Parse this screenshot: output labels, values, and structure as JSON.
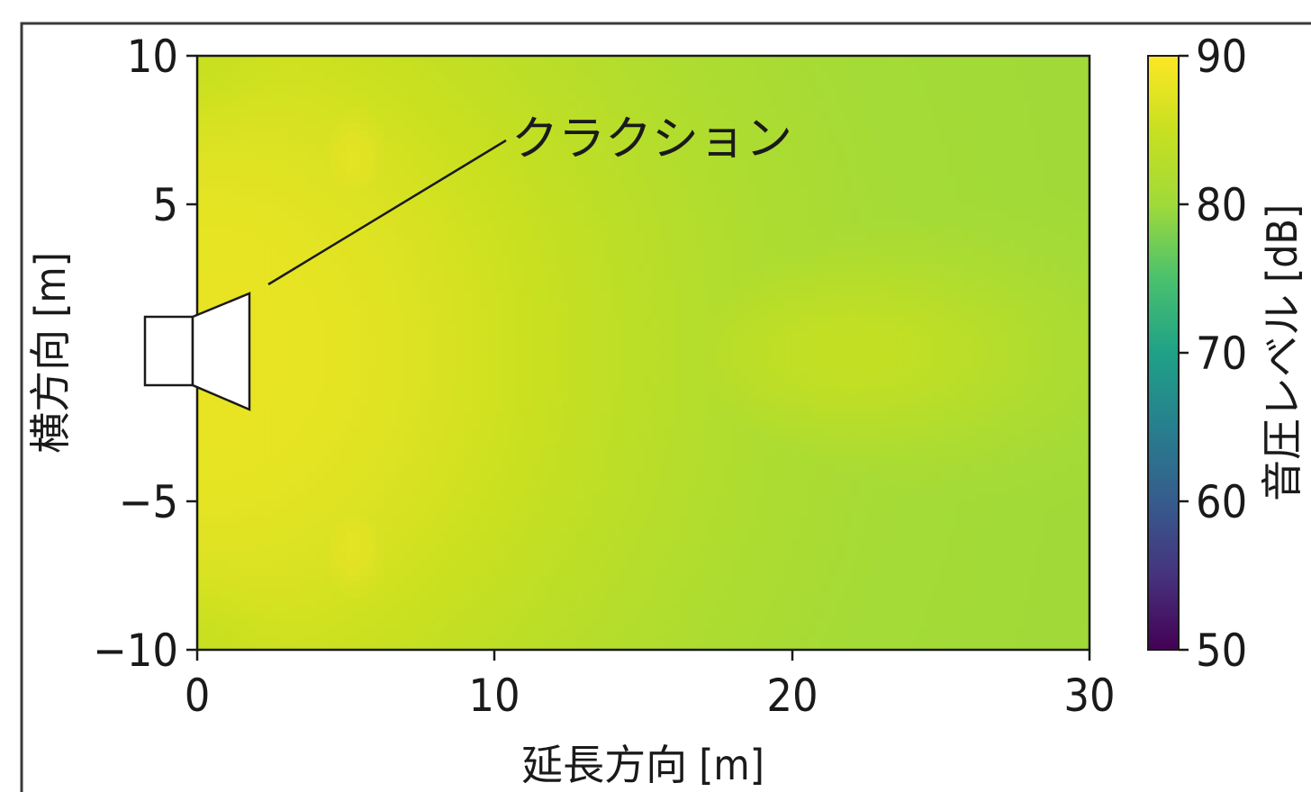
{
  "chart_data": {
    "type": "heatmap",
    "title": "",
    "xlabel": "延長方向 [m]",
    "ylabel": "横方向 [m]",
    "xlim": [
      0,
      30
    ],
    "ylim": [
      -10,
      10
    ],
    "xticks": [
      "0",
      "10",
      "20",
      "30"
    ],
    "yticks": [
      "10",
      "5",
      "−5",
      "−10"
    ],
    "colorbar": {
      "label": "音圧レベル [dB]",
      "range": [
        50,
        90
      ],
      "ticks": [
        "90",
        "80",
        "70",
        "60",
        "50"
      ],
      "colormap": "viridis"
    },
    "field": {
      "source_position": [
        0,
        0
      ],
      "max_level_db": 88,
      "min_level_db": 80,
      "description_levels": [
        {
          "x": 0,
          "y": 0,
          "db": 88
        },
        {
          "x": 5,
          "y": 7,
          "db": 88
        },
        {
          "x": 5,
          "y": -7,
          "db": 88
        },
        {
          "x": 12,
          "y": 0,
          "db": 87
        },
        {
          "x": 24,
          "y": 0,
          "db": 84
        },
        {
          "x": 30,
          "y": 10,
          "db": 82
        },
        {
          "x": 30,
          "y": -10,
          "db": 81
        },
        {
          "x": 0,
          "y": 10,
          "db": 81
        },
        {
          "x": 0,
          "y": -10,
          "db": 80
        }
      ]
    },
    "annotation": {
      "text": "クラクション",
      "target": "speaker-icon"
    }
  },
  "colors": {
    "frame": "#3a3a3a",
    "axis": "#1a1a1a",
    "speaker_fill": "#ffffff"
  }
}
